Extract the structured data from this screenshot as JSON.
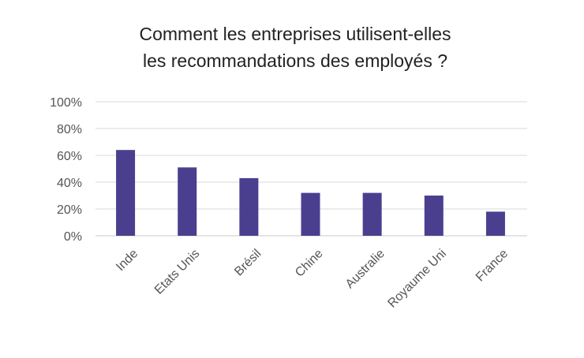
{
  "chart_data": {
    "type": "bar",
    "title": [
      "Comment les entreprises utilisent-elles",
      "les recommandations des employés ?"
    ],
    "xlabel": "",
    "ylabel": "",
    "categories": [
      "Inde",
      "Etats Unis",
      "Brésil",
      "Chine",
      "Australie",
      "Royaume Uni",
      "France"
    ],
    "values": [
      64,
      51,
      43,
      32,
      32,
      30,
      18
    ],
    "value_unit": "%",
    "ylim": [
      0,
      100
    ],
    "yticks": [
      "0%",
      "20%",
      "40%",
      "60%",
      "80%",
      "100%"
    ],
    "ytick_values": [
      0,
      20,
      40,
      60,
      80,
      100
    ],
    "grid": true,
    "legend": "none",
    "bar_color": "#4a3f8f"
  }
}
